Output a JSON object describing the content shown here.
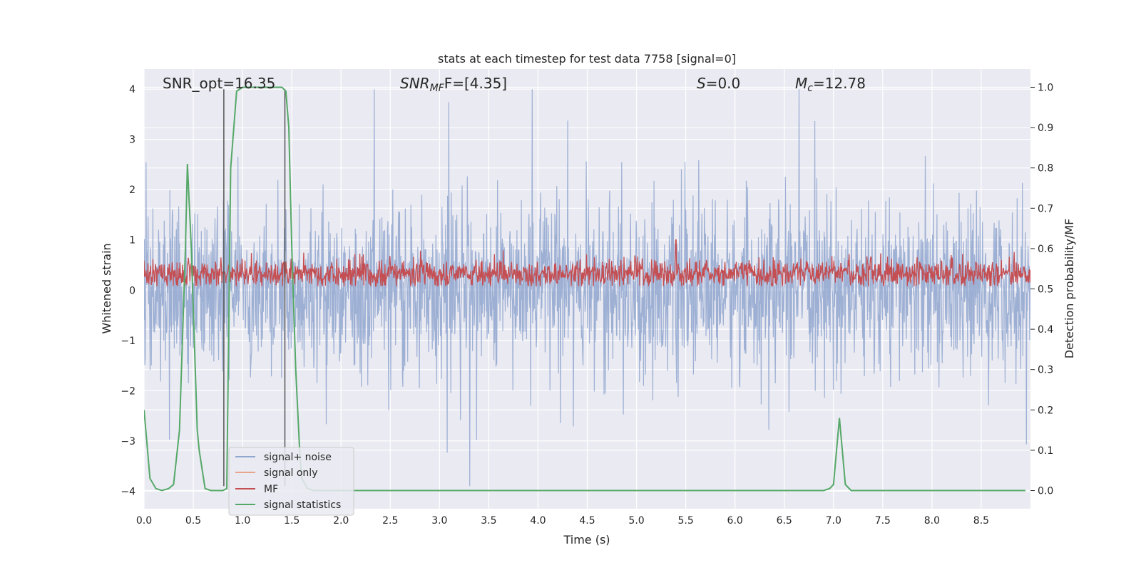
{
  "chart_data": {
    "type": "line",
    "title": "stats at each timestep for test data 7758 [signal=0]",
    "xlabel": "Time (s)",
    "ylabel": "Whitened strain",
    "ylabel_right": "Detection probability/MF",
    "xlim": [
      0.0,
      9.0
    ],
    "ylim": [
      -4.35,
      4.4
    ],
    "ylim_right": [
      -0.045,
      1.045
    ],
    "x_ticks": [
      "0.0",
      "0.5",
      "1.0",
      "1.5",
      "2.0",
      "2.5",
      "3.0",
      "3.5",
      "4.0",
      "4.5",
      "5.0",
      "5.5",
      "6.0",
      "6.5",
      "7.0",
      "7.5",
      "8.0",
      "8.5"
    ],
    "y_ticks": [
      "4",
      "3",
      "2",
      "1",
      "0",
      "−1",
      "−2",
      "−3",
      "−4"
    ],
    "y_ticks_right": [
      "1.0",
      "0.9",
      "0.8",
      "0.7",
      "0.6",
      "0.5",
      "0.4",
      "0.3",
      "0.2",
      "0.1",
      "0.0"
    ],
    "annotations": {
      "snr_opt": "SNR_opt=16.35",
      "snr_mf_base": "SNR",
      "snr_mf_sub": "MF",
      "snr_mf_rest": "F=[4.35]",
      "s_var": "S",
      "s_rest": "=0.0",
      "mc_var": "M",
      "mc_sub": "c",
      "mc_rest": "=12.78"
    },
    "vertical_lines": [
      0.81,
      1.43
    ],
    "series": [
      {
        "name": "signal+ noise",
        "color": "#8fa6cf",
        "axis": "left",
        "description": "whitened strain noise, roughly between -2 and 2.5 with spikes up to about 4 and down to about -3.9"
      },
      {
        "name": "signal only",
        "color": "#e8a48c",
        "axis": "left",
        "values": []
      },
      {
        "name": "MF",
        "color": "#c44e52",
        "axis": "left",
        "description": "matched filter output, roughly 0.1 to 0.7, peak about 1.0 near 5.4 s"
      },
      {
        "name": "signal statistics",
        "color": "#55a868",
        "axis": "right",
        "x": [
          0.0,
          0.06,
          0.12,
          0.18,
          0.25,
          0.3,
          0.36,
          0.42,
          0.44,
          0.48,
          0.54,
          0.56,
          0.62,
          0.68,
          0.74,
          0.8,
          0.84,
          0.88,
          0.94,
          1.0,
          1.06,
          1.12,
          1.18,
          1.24,
          1.3,
          1.36,
          1.4,
          1.44,
          1.47,
          1.5,
          1.54,
          1.58,
          1.6,
          1.66,
          1.72,
          1.8,
          1.9,
          2.0,
          2.5,
          3.0,
          3.5,
          4.0,
          4.5,
          5.0,
          5.5,
          6.0,
          6.5,
          6.9,
          6.96,
          7.0,
          7.06,
          7.12,
          7.18,
          7.3,
          7.5,
          8.0,
          8.5,
          8.95
        ],
        "y": [
          0.2,
          0.03,
          0.005,
          0.0,
          0.005,
          0.015,
          0.15,
          0.6,
          0.81,
          0.6,
          0.15,
          0.1,
          0.005,
          0.0,
          0.0,
          0.0,
          0.005,
          0.8,
          0.99,
          1.0,
          1.0,
          1.0,
          1.0,
          1.0,
          1.0,
          1.0,
          1.0,
          0.99,
          0.9,
          0.6,
          0.3,
          0.1,
          0.03,
          0.005,
          0.0,
          0.0,
          0.0,
          0.0,
          0.0,
          0.0,
          0.0,
          0.0,
          0.0,
          0.0,
          0.0,
          0.0,
          0.0,
          0.0,
          0.005,
          0.015,
          0.18,
          0.015,
          0.0,
          0.0,
          0.0,
          0.0,
          0.0,
          0.0
        ]
      }
    ],
    "legend": {
      "location": "lower-left",
      "entries": [
        "signal+ noise",
        "signal only",
        "MF",
        "signal statistics"
      ]
    },
    "grid": true
  }
}
